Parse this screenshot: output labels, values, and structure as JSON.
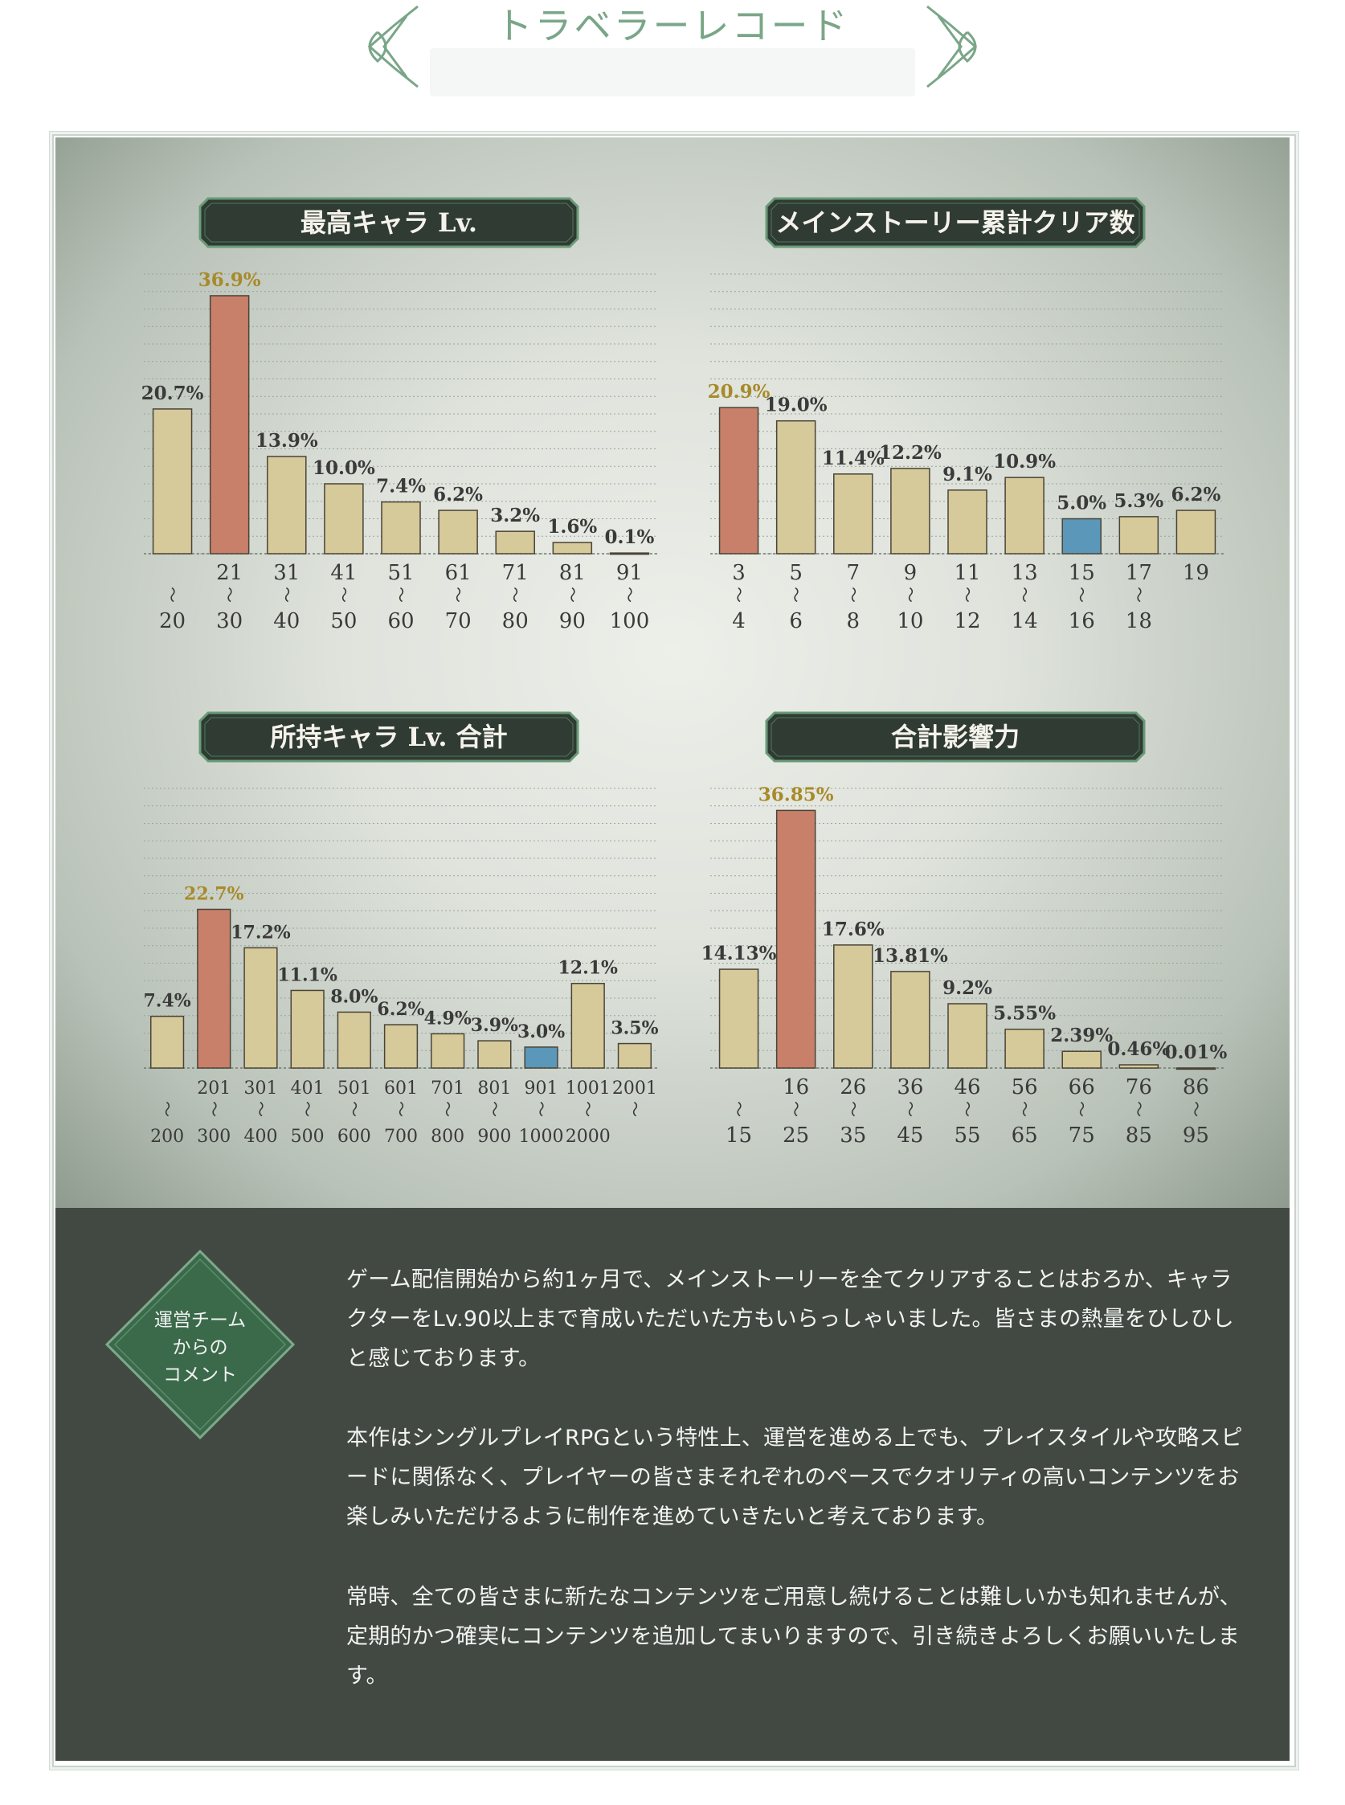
{
  "header": {
    "title": "トラベラーレコード",
    "subtitle": "",
    "accent_color": "#7aa688"
  },
  "colors": {
    "bar_default": "#d6c99a",
    "bar_highlight": "#c8806a",
    "bar_blue": "#5b97b8",
    "bar_stroke": "#4a4437",
    "label_default": "#3a3a3a",
    "label_highlight": "#a88a2a",
    "banner_fill": "#2f3b33",
    "banner_border": "#6a9a78",
    "comment_bg": "#424942"
  },
  "chart_data": [
    {
      "type": "bar",
      "title": "最高キャラ Lv.",
      "unit": "%",
      "ylim": [
        0,
        40
      ],
      "categories": [
        [
          "",
          "〜",
          "20"
        ],
        [
          "21",
          "〜",
          "30"
        ],
        [
          "31",
          "〜",
          "40"
        ],
        [
          "41",
          "〜",
          "50"
        ],
        [
          "51",
          "〜",
          "60"
        ],
        [
          "61",
          "〜",
          "70"
        ],
        [
          "71",
          "〜",
          "80"
        ],
        [
          "81",
          "〜",
          "90"
        ],
        [
          "91",
          "〜",
          "100"
        ]
      ],
      "values": [
        20.7,
        36.9,
        13.9,
        10.0,
        7.4,
        6.2,
        3.2,
        1.6,
        0.1
      ],
      "labels": [
        "20.7%",
        "36.9%",
        "13.9%",
        "10.0%",
        "7.4%",
        "6.2%",
        "3.2%",
        "1.6%",
        "0.1%"
      ],
      "highlight": [
        1
      ],
      "blue": []
    },
    {
      "type": "bar",
      "title": "メインストーリー累計クリア数",
      "unit": "%",
      "ylim": [
        0,
        40
      ],
      "categories": [
        [
          "3",
          "〜",
          "4"
        ],
        [
          "5",
          "〜",
          "6"
        ],
        [
          "7",
          "〜",
          "8"
        ],
        [
          "9",
          "〜",
          "10"
        ],
        [
          "11",
          "〜",
          "12"
        ],
        [
          "13",
          "〜",
          "14"
        ],
        [
          "15",
          "〜",
          "16"
        ],
        [
          "17",
          "〜",
          "18"
        ],
        [
          "19",
          "",
          ""
        ]
      ],
      "values": [
        20.9,
        19.0,
        11.4,
        12.2,
        9.1,
        10.9,
        5.0,
        5.3,
        6.2
      ],
      "labels": [
        "20.9%",
        "19.0%",
        "11.4%",
        "12.2%",
        "9.1%",
        "10.9%",
        "5.0%",
        "5.3%",
        "6.2%"
      ],
      "highlight": [
        0
      ],
      "blue": [
        6
      ]
    },
    {
      "type": "bar",
      "title": "所持キャラ Lv. 合計",
      "unit": "%",
      "ylim": [
        0,
        40
      ],
      "categories": [
        [
          "",
          "〜",
          "200"
        ],
        [
          "201",
          "〜",
          "300"
        ],
        [
          "301",
          "〜",
          "400"
        ],
        [
          "401",
          "〜",
          "500"
        ],
        [
          "501",
          "〜",
          "600"
        ],
        [
          "601",
          "〜",
          "700"
        ],
        [
          "701",
          "〜",
          "800"
        ],
        [
          "801",
          "〜",
          "900"
        ],
        [
          "901",
          "〜",
          "1000"
        ],
        [
          "1001",
          "〜",
          "2000"
        ],
        [
          "2001",
          "〜",
          ""
        ]
      ],
      "values": [
        7.4,
        22.7,
        17.2,
        11.1,
        8.0,
        6.2,
        4.9,
        3.9,
        3.0,
        12.1,
        3.5
      ],
      "labels": [
        "7.4%",
        "22.7%",
        "17.2%",
        "11.1%",
        "8.0%",
        "6.2%",
        "4.9%",
        "3.9%",
        "3.0%",
        "12.1%",
        "3.5%"
      ],
      "highlight": [
        1
      ],
      "blue": [
        8
      ]
    },
    {
      "type": "bar",
      "title": "合計影響力",
      "unit": "%",
      "ylim": [
        0,
        40
      ],
      "categories": [
        [
          "",
          "〜",
          "15"
        ],
        [
          "16",
          "〜",
          "25"
        ],
        [
          "26",
          "〜",
          "35"
        ],
        [
          "36",
          "〜",
          "45"
        ],
        [
          "46",
          "〜",
          "55"
        ],
        [
          "56",
          "〜",
          "65"
        ],
        [
          "66",
          "〜",
          "75"
        ],
        [
          "76",
          "〜",
          "85"
        ],
        [
          "86",
          "〜",
          "95"
        ]
      ],
      "values": [
        14.13,
        36.85,
        17.6,
        13.81,
        9.2,
        5.55,
        2.39,
        0.46,
        0.01
      ],
      "labels": [
        "14.13%",
        "36.85%",
        "17.6%",
        "13.81%",
        "9.2%",
        "5.55%",
        "2.39%",
        "0.46%",
        "0.01%"
      ],
      "highlight": [
        1
      ],
      "blue": []
    }
  ],
  "comment": {
    "badge": "運営チーム\nからの\nコメント",
    "paragraphs": [
      "ゲーム配信開始から約1ヶ月で、メインストーリーを全てクリアすることはおろか、キャラクターをLv.90以上まで育成いただいた方もいらっしゃいました。皆さまの熱量をひしひしと感じております。",
      "本作はシングルプレイRPGという特性上、運営を進める上でも、プレイスタイルや攻略スピードに関係なく、プレイヤーの皆さまそれぞれのペースでクオリティの高いコンテンツをお楽しみいただけるように制作を進めていきたいと考えております。",
      "常時、全ての皆さまに新たなコンテンツをご用意し続けることは難しいかも知れませんが、定期的かつ確実にコンテンツを追加してまいりますので、引き続きよろしくお願いいたします。"
    ]
  }
}
